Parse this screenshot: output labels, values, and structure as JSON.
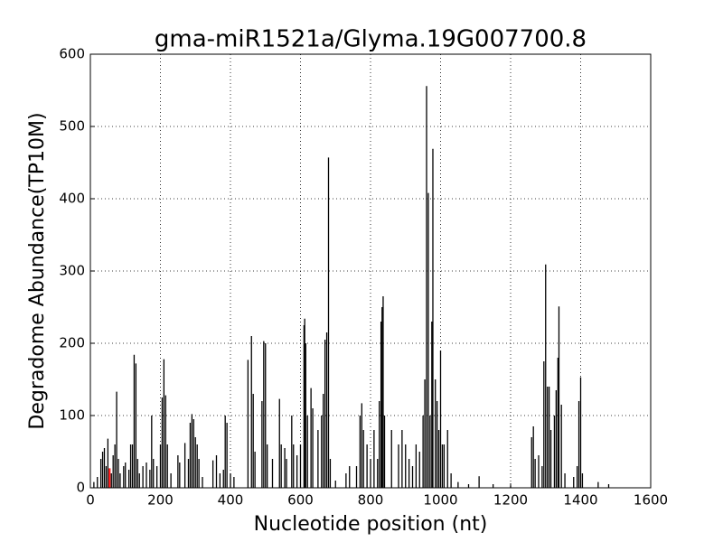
{
  "chart_data": {
    "type": "spikes",
    "title": "gma-miR1521a/Glyma.19G007700.8",
    "x_label": "Nucleotide position (nt)",
    "y_label": "Degradome Abundance(TP10M)",
    "xlim": [
      0,
      1600
    ],
    "ylim": [
      0,
      600
    ],
    "xticks": [
      0,
      200,
      400,
      600,
      800,
      1000,
      1200,
      1400,
      1600
    ],
    "yticks": [
      0,
      100,
      200,
      300,
      400,
      500,
      600
    ],
    "grid": true,
    "color": "#000000",
    "x": [
      10,
      20,
      30,
      35,
      40,
      45,
      50,
      60,
      65,
      70,
      75,
      80,
      85,
      95,
      100,
      110,
      115,
      120,
      125,
      130,
      135,
      140,
      150,
      160,
      170,
      175,
      180,
      190,
      200,
      205,
      210,
      215,
      220,
      230,
      250,
      255,
      270,
      280,
      285,
      290,
      295,
      300,
      305,
      310,
      320,
      350,
      360,
      370,
      380,
      385,
      390,
      400,
      410,
      450,
      460,
      465,
      470,
      490,
      495,
      500,
      505,
      520,
      540,
      545,
      555,
      560,
      575,
      580,
      590,
      600,
      610,
      612,
      615,
      620,
      630,
      635,
      650,
      660,
      665,
      670,
      675,
      680,
      685,
      700,
      730,
      740,
      760,
      770,
      775,
      780,
      790,
      800,
      810,
      820,
      825,
      830,
      833,
      836,
      840,
      860,
      880,
      890,
      900,
      910,
      920,
      930,
      940,
      950,
      955,
      960,
      965,
      970,
      975,
      978,
      985,
      990,
      995,
      1000,
      1005,
      1010,
      1020,
      1030,
      1050,
      1080,
      1110,
      1150,
      1200,
      1260,
      1265,
      1270,
      1280,
      1290,
      1295,
      1300,
      1305,
      1310,
      1315,
      1325,
      1330,
      1335,
      1338,
      1345,
      1355,
      1380,
      1390,
      1395,
      1400,
      1405,
      1450,
      1480
    ],
    "values": [
      8,
      15,
      40,
      50,
      55,
      30,
      68,
      20,
      45,
      60,
      133,
      40,
      20,
      30,
      35,
      25,
      60,
      60,
      184,
      172,
      40,
      20,
      30,
      35,
      25,
      100,
      40,
      30,
      60,
      125,
      178,
      128,
      60,
      20,
      45,
      35,
      62,
      40,
      90,
      102,
      95,
      70,
      60,
      40,
      15,
      38,
      45,
      20,
      25,
      100,
      90,
      20,
      15,
      177,
      210,
      130,
      50,
      120,
      203,
      200,
      60,
      40,
      123,
      60,
      55,
      40,
      100,
      60,
      45,
      60,
      225,
      234,
      200,
      100,
      138,
      110,
      80,
      100,
      130,
      205,
      215,
      457,
      40,
      10,
      20,
      30,
      30,
      100,
      117,
      80,
      60,
      40,
      80,
      40,
      120,
      230,
      250,
      265,
      100,
      80,
      60,
      80,
      60,
      40,
      30,
      60,
      50,
      100,
      150,
      556,
      408,
      100,
      230,
      469,
      150,
      120,
      80,
      190,
      60,
      60,
      80,
      20,
      8,
      5,
      16,
      5,
      3,
      70,
      85,
      40,
      45,
      30,
      175,
      309,
      140,
      140,
      80,
      100,
      135,
      180,
      251,
      115,
      20,
      15,
      30,
      120,
      153,
      20,
      8,
      5
    ],
    "highlight": {
      "x": 55,
      "value": 27,
      "color": "#ff0000"
    }
  }
}
